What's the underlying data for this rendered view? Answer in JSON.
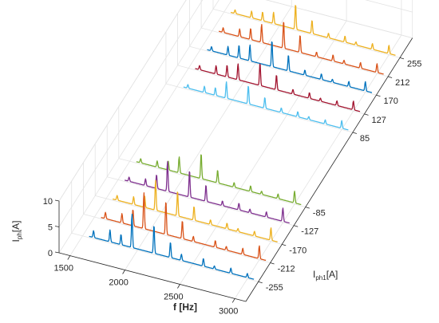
{
  "chart_data": {
    "type": "line",
    "projection": "3d-waterfall",
    "title": "",
    "axes": {
      "x": {
        "label_main": "f [Hz]",
        "range": [
          1400,
          3100
        ],
        "ticks": [
          1500,
          2000,
          2500,
          3000
        ],
        "tick_labels": [
          "1500",
          "2000",
          "2500",
          "3000"
        ]
      },
      "y": {
        "label_main": "I",
        "label_sub": "ph1",
        "label_tail": "[A]",
        "range": [
          -300,
          300
        ],
        "ticks": [
          -255,
          -212,
          -170,
          -127,
          -85,
          85,
          127,
          170,
          212,
          255
        ],
        "tick_labels": [
          "-255",
          "-212",
          "-170",
          "-127",
          "-85",
          "85",
          "127",
          "170",
          "212",
          "255"
        ]
      },
      "z": {
        "label_main": "I",
        "label_sub": "ph",
        "label_tail": "[A]",
        "range": [
          0,
          10
        ],
        "ticks": [
          0,
          5,
          10
        ],
        "tick_labels": [
          "0",
          "5",
          "10"
        ]
      }
    },
    "grid": true,
    "baseline": 0.25,
    "series": [
      {
        "y": -255,
        "color": "#0072BD",
        "peaks": [
          [
            1600,
            1.3
          ],
          [
            1750,
            2.3
          ],
          [
            1850,
            2.0
          ],
          [
            1950,
            6.5
          ],
          [
            2150,
            5.5
          ],
          [
            2300,
            3.0
          ],
          [
            2400,
            1.2
          ],
          [
            2600,
            1.5
          ],
          [
            2700,
            0.6
          ],
          [
            2850,
            1.0
          ],
          [
            3000,
            0.8
          ]
        ]
      },
      {
        "y": -212,
        "color": "#D95319",
        "peaks": [
          [
            1600,
            1.2
          ],
          [
            1750,
            1.8
          ],
          [
            1850,
            3.2
          ],
          [
            1950,
            7.0
          ],
          [
            2150,
            6.5
          ],
          [
            2300,
            3.5
          ],
          [
            2400,
            1.0
          ],
          [
            2600,
            1.3
          ],
          [
            2700,
            0.7
          ],
          [
            2850,
            1.2
          ],
          [
            3000,
            2.5
          ]
        ]
      },
      {
        "y": -170,
        "color": "#EDB120",
        "peaks": [
          [
            1600,
            0.9
          ],
          [
            1750,
            1.5
          ],
          [
            1850,
            2.3
          ],
          [
            1950,
            5.8
          ],
          [
            2150,
            4.9
          ],
          [
            2300,
            2.7
          ],
          [
            2450,
            0.9
          ],
          [
            2600,
            1.1
          ],
          [
            2700,
            0.6
          ],
          [
            2850,
            0.9
          ],
          [
            3000,
            2.4
          ]
        ]
      },
      {
        "y": -127,
        "color": "#7E2F8E",
        "peaks": [
          [
            1600,
            0.8
          ],
          [
            1750,
            1.3
          ],
          [
            1850,
            2.7
          ],
          [
            1950,
            5.8
          ],
          [
            2150,
            5.2
          ],
          [
            2300,
            3.2
          ],
          [
            2450,
            0.9
          ],
          [
            2600,
            1.3
          ],
          [
            2700,
            0.7
          ],
          [
            2850,
            1.0
          ],
          [
            3000,
            2.6
          ]
        ]
      },
      {
        "y": -85,
        "color": "#77AC30",
        "peaks": [
          [
            1600,
            0.8
          ],
          [
            1750,
            1.2
          ],
          [
            1850,
            1.8
          ],
          [
            1950,
            3.1
          ],
          [
            2150,
            4.9
          ],
          [
            2300,
            2.5
          ],
          [
            2450,
            0.9
          ],
          [
            2600,
            1.1
          ],
          [
            2700,
            0.6
          ],
          [
            2850,
            0.9
          ],
          [
            3000,
            2.3
          ]
        ]
      },
      {
        "y": 85,
        "color": "#4DBEEE",
        "peaks": [
          [
            1600,
            0.7
          ],
          [
            1750,
            1.2
          ],
          [
            1850,
            1.5
          ],
          [
            1950,
            3.2
          ],
          [
            2150,
            3.6
          ],
          [
            2300,
            2.1
          ],
          [
            2450,
            0.9
          ],
          [
            2600,
            1.0
          ],
          [
            2700,
            0.6
          ],
          [
            2850,
            0.8
          ],
          [
            3000,
            1.5
          ]
        ]
      },
      {
        "y": 127,
        "color": "#A2142F",
        "peaks": [
          [
            1600,
            0.8
          ],
          [
            1750,
            1.6
          ],
          [
            1850,
            2.3
          ],
          [
            1950,
            3.1
          ],
          [
            2150,
            4.4
          ],
          [
            2300,
            2.9
          ],
          [
            2450,
            0.9
          ],
          [
            2600,
            1.1
          ],
          [
            2700,
            0.6
          ],
          [
            2850,
            0.9
          ],
          [
            3000,
            1.7
          ]
        ]
      },
      {
        "y": 170,
        "color": "#0072BD",
        "peaks": [
          [
            1600,
            0.8
          ],
          [
            1750,
            1.7
          ],
          [
            1850,
            2.5
          ],
          [
            1950,
            3.1
          ],
          [
            2150,
            5.1
          ],
          [
            2300,
            3.1
          ],
          [
            2450,
            1.0
          ],
          [
            2600,
            1.1
          ],
          [
            2700,
            0.6
          ],
          [
            2850,
            1.0
          ],
          [
            3000,
            1.8
          ]
        ]
      },
      {
        "y": 212,
        "color": "#D95319",
        "peaks": [
          [
            1600,
            0.9
          ],
          [
            1750,
            1.5
          ],
          [
            1850,
            2.2
          ],
          [
            1950,
            3.5
          ],
          [
            2150,
            5.3
          ],
          [
            2300,
            3.4
          ],
          [
            2450,
            0.9
          ],
          [
            2600,
            1.2
          ],
          [
            2700,
            0.7
          ],
          [
            2850,
            1.1
          ],
          [
            3000,
            1.7
          ]
        ]
      },
      {
        "y": 255,
        "color": "#EDB120",
        "peaks": [
          [
            1600,
            0.7
          ],
          [
            1750,
            1.3
          ],
          [
            1850,
            1.7
          ],
          [
            1950,
            2.2
          ],
          [
            2150,
            4.9
          ],
          [
            2300,
            2.6
          ],
          [
            2450,
            0.9
          ],
          [
            2600,
            1.2
          ],
          [
            2700,
            0.6
          ],
          [
            2850,
            1.1
          ],
          [
            3000,
            1.6
          ]
        ]
      }
    ]
  }
}
